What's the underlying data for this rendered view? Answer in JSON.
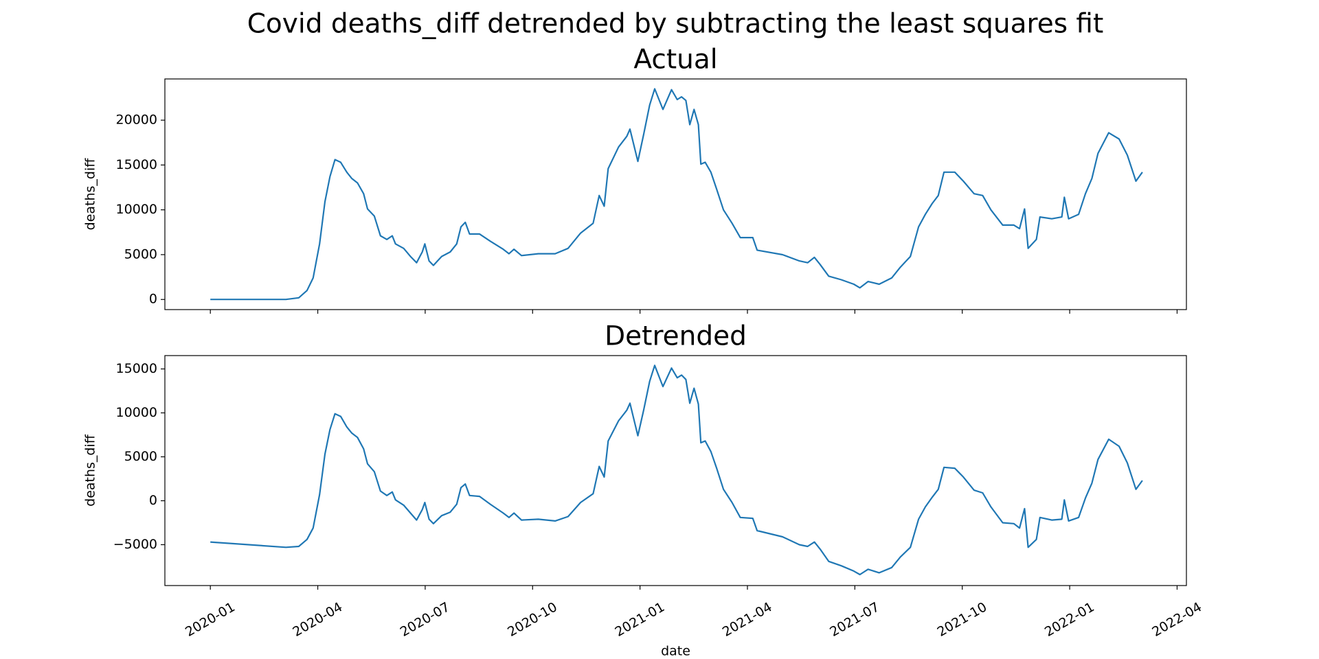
{
  "title": "Covid deaths_diff detrended by subtracting the least squares fit",
  "chart_data": [
    {
      "type": "line",
      "title": "Actual",
      "ylabel": "deaths_diff",
      "color": "#1f77b4",
      "x": [
        0,
        2.11,
        2.47,
        2.7,
        2.87,
        3.05,
        3.2,
        3.34,
        3.48,
        3.64,
        3.81,
        3.95,
        4.11,
        4.28,
        4.39,
        4.58,
        4.75,
        4.93,
        5.08,
        5.17,
        5.4,
        5.59,
        5.76,
        5.92,
        5.99,
        6.11,
        6.23,
        6.46,
        6.7,
        6.88,
        7,
        7.12,
        7.24,
        7.52,
        7.82,
        8.18,
        8.34,
        8.48,
        8.69,
        9.16,
        9.63,
        9.99,
        10.34,
        10.69,
        10.86,
        11,
        11.11,
        11.4,
        11.63,
        11.72,
        11.94,
        12.1,
        12.27,
        12.41,
        12.64,
        12.88,
        13.04,
        13.16,
        13.28,
        13.39,
        13.51,
        13.63,
        13.7,
        13.82,
        13.98,
        14.14,
        14.33,
        14.57,
        14.8,
        15.15,
        15.27,
        15.98,
        16.45,
        16.68,
        16.87,
        17.03,
        17.27,
        17.62,
        17.97,
        18.14,
        18.37,
        18.68,
        19.03,
        19.27,
        19.55,
        19.78,
        19.97,
        20.16,
        20.33,
        20.49,
        20.79,
        21.03,
        21.33,
        21.57,
        21.8,
        22.13,
        22.44,
        22.6,
        22.74,
        22.84,
        23.07,
        23.17,
        23.5,
        23.78,
        23.85,
        23.97,
        24.25,
        24.44,
        24.62,
        24.79,
        25.09,
        25.38,
        25.61,
        25.85,
        26.03
      ],
      "values": [
        0,
        0,
        190,
        1000,
        2400,
        6200,
        10900,
        13700,
        15600,
        15300,
        14200,
        13500,
        13000,
        11800,
        10100,
        9300,
        7100,
        6700,
        7100,
        6200,
        5700,
        4800,
        4100,
        5300,
        6200,
        4300,
        3800,
        4800,
        5300,
        6200,
        8100,
        8600,
        7300,
        7300,
        6500,
        5600,
        5100,
        5600,
        4900,
        5100,
        5100,
        5700,
        7400,
        8500,
        11600,
        10400,
        14600,
        17000,
        18200,
        19000,
        15400,
        18400,
        21700,
        23500,
        21200,
        23400,
        22300,
        22600,
        22200,
        19500,
        21200,
        19500,
        15100,
        15300,
        14200,
        12300,
        10000,
        8500,
        6900,
        6900,
        5500,
        5000,
        4300,
        4100,
        4700,
        3900,
        2600,
        2200,
        1700,
        1300,
        2000,
        1700,
        2400,
        3600,
        4800,
        8100,
        9500,
        10700,
        11600,
        14200,
        14200,
        13200,
        11800,
        11600,
        10000,
        8300,
        8300,
        7900,
        10100,
        5700,
        6700,
        9200,
        9000,
        9200,
        11400,
        9000,
        9500,
        11800,
        13500,
        16300,
        18600,
        17900,
        16100,
        13200,
        14200
      ],
      "xlim": [
        -1.27,
        27.26
      ],
      "xticks": [
        0,
        3,
        6,
        9,
        12,
        15,
        18,
        21,
        24,
        27
      ],
      "ylim": [
        -1130,
        24600
      ],
      "yticks": [
        0,
        5000,
        10000,
        15000,
        20000
      ]
    },
    {
      "type": "line",
      "title": "Detrended",
      "ylabel": "deaths_diff",
      "xlabel": "date",
      "color": "#1f77b4",
      "x": [
        0,
        2.11,
        2.47,
        2.7,
        2.87,
        3.05,
        3.2,
        3.34,
        3.48,
        3.64,
        3.81,
        3.95,
        4.11,
        4.28,
        4.39,
        4.58,
        4.75,
        4.93,
        5.08,
        5.17,
        5.4,
        5.59,
        5.76,
        5.92,
        5.99,
        6.11,
        6.23,
        6.46,
        6.7,
        6.88,
        7,
        7.12,
        7.24,
        7.52,
        7.82,
        8.18,
        8.34,
        8.48,
        8.69,
        9.16,
        9.63,
        9.99,
        10.34,
        10.69,
        10.86,
        11,
        11.11,
        11.4,
        11.63,
        11.72,
        11.94,
        12.1,
        12.27,
        12.41,
        12.64,
        12.88,
        13.04,
        13.16,
        13.28,
        13.39,
        13.51,
        13.63,
        13.7,
        13.82,
        13.98,
        14.14,
        14.33,
        14.57,
        14.8,
        15.15,
        15.27,
        15.98,
        16.45,
        16.68,
        16.87,
        17.03,
        17.27,
        17.62,
        17.97,
        18.14,
        18.37,
        18.68,
        19.03,
        19.27,
        19.55,
        19.78,
        19.97,
        20.16,
        20.33,
        20.49,
        20.79,
        21.03,
        21.33,
        21.57,
        21.8,
        22.13,
        22.44,
        22.6,
        22.74,
        22.84,
        23.07,
        23.17,
        23.5,
        23.78,
        23.85,
        23.97,
        24.25,
        24.44,
        24.62,
        24.79,
        25.09,
        25.38,
        25.61,
        25.85,
        26.03
      ],
      "values": [
        -4700,
        -5300,
        -5200,
        -4400,
        -3100,
        700,
        5300,
        8100,
        9900,
        9600,
        8400,
        7700,
        7200,
        5900,
        4200,
        3300,
        1100,
        600,
        1000,
        100,
        -500,
        -1400,
        -2200,
        -1000,
        -200,
        -2100,
        -2600,
        -1700,
        -1300,
        -400,
        1500,
        1900,
        600,
        500,
        -400,
        -1400,
        -1900,
        -1400,
        -2200,
        -2100,
        -2300,
        -1800,
        -200,
        800,
        3900,
        2700,
        6800,
        9100,
        10300,
        11100,
        7400,
        10300,
        13600,
        15400,
        13000,
        15100,
        14000,
        14300,
        13800,
        11100,
        12800,
        11000,
        6600,
        6800,
        5600,
        3700,
        1300,
        -200,
        -1900,
        -2000,
        -3400,
        -4100,
        -5000,
        -5200,
        -4700,
        -5500,
        -6900,
        -7400,
        -8000,
        -8400,
        -7800,
        -8200,
        -7600,
        -6400,
        -5300,
        -2100,
        -700,
        400,
        1300,
        3800,
        3700,
        2700,
        1200,
        900,
        -700,
        -2500,
        -2600,
        -3100,
        -900,
        -5300,
        -4400,
        -1900,
        -2200,
        -2100,
        100,
        -2300,
        -1900,
        300,
        2000,
        4700,
        7000,
        6200,
        4300,
        1300,
        2300
      ],
      "xlim": [
        -1.27,
        27.26
      ],
      "xticks": [
        {
          "value": 0,
          "label": "2020-01"
        },
        {
          "value": 3,
          "label": "2020-04"
        },
        {
          "value": 6,
          "label": "2020-07"
        },
        {
          "value": 9,
          "label": "2020-10"
        },
        {
          "value": 12,
          "label": "2021-01"
        },
        {
          "value": 15,
          "label": "2021-04"
        },
        {
          "value": 18,
          "label": "2021-07"
        },
        {
          "value": 21,
          "label": "2021-10"
        },
        {
          "value": 24,
          "label": "2022-01"
        },
        {
          "value": 27,
          "label": "2022-04"
        }
      ],
      "ylim": [
        -9650,
        16520
      ],
      "yticks": [
        {
          "value": -5000,
          "label": "−5000"
        },
        0,
        5000,
        10000,
        15000
      ]
    }
  ]
}
